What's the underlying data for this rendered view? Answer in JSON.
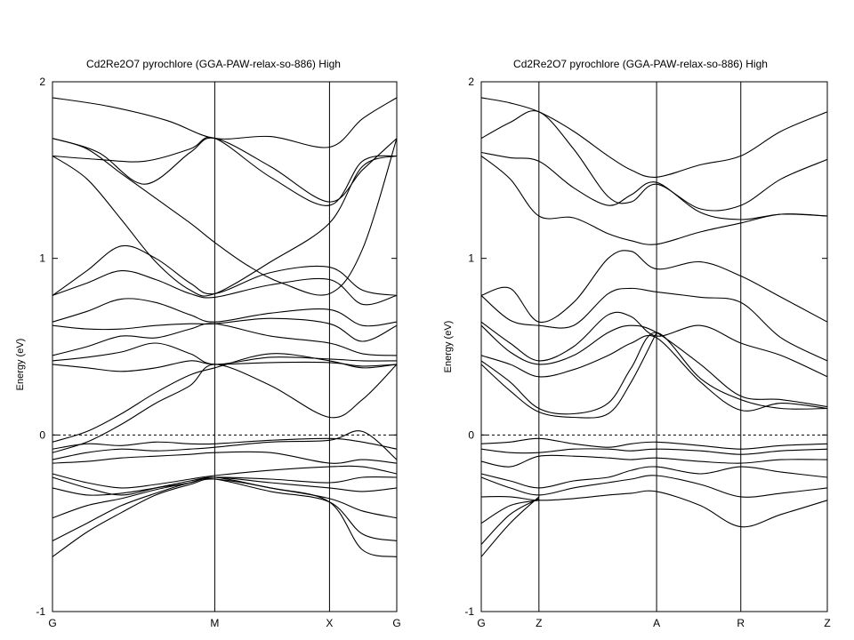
{
  "chart_data": [
    {
      "type": "line",
      "title": "Cd2Re2O7 pyrochlore (GGA-PAW-relax-so-886) High",
      "ylabel": "Energy (eV)",
      "xlabel": "",
      "ylim": [
        -1,
        2
      ],
      "yticks": [
        -1,
        0,
        1,
        2
      ],
      "xlim": [
        0,
        3
      ],
      "kpoints": [
        {
          "label": "G",
          "x": 0
        },
        {
          "label": "M",
          "x": 1.414
        },
        {
          "label": "X",
          "x": 2.414
        },
        {
          "label": "G",
          "x": 3
        }
      ],
      "fermi_level": 0,
      "bands": [
        {
          "x": [
            0,
            0.5,
            1.0,
            1.414,
            1.9,
            2.414,
            2.7,
            3
          ],
          "y": [
            1.91,
            1.86,
            1.78,
            1.68,
            1.69,
            1.63,
            1.79,
            1.91
          ]
        },
        {
          "x": [
            0,
            0.3,
            0.6,
            0.9,
            1.2,
            1.414,
            1.7,
            2.0,
            2.414,
            2.7,
            3
          ],
          "y": [
            1.68,
            1.62,
            1.48,
            1.34,
            1.2,
            1.09,
            0.96,
            0.86,
            0.8,
            1.05,
            1.68
          ]
        },
        {
          "x": [
            0,
            0.4,
            0.8,
            1.2,
            1.414,
            1.9,
            2.414,
            2.7,
            3
          ],
          "y": [
            1.68,
            1.6,
            1.42,
            1.6,
            1.68,
            1.52,
            1.32,
            1.5,
            1.68
          ]
        },
        {
          "x": [
            0,
            0.4,
            0.8,
            1.2,
            1.414,
            1.9,
            2.414,
            2.7,
            3
          ],
          "y": [
            1.58,
            1.56,
            1.55,
            1.62,
            1.68,
            1.46,
            1.3,
            1.55,
            1.58
          ]
        },
        {
          "x": [
            0,
            0.3,
            0.6,
            0.9,
            1.2,
            1.414,
            1.9,
            2.414,
            2.7,
            3
          ],
          "y": [
            1.58,
            1.45,
            1.22,
            0.98,
            0.82,
            0.8,
            0.98,
            1.2,
            1.52,
            1.58
          ]
        },
        {
          "x": [
            0,
            0.3,
            0.6,
            0.9,
            1.2,
            1.414,
            1.9,
            2.414,
            2.7,
            3
          ],
          "y": [
            0.79,
            0.93,
            1.07,
            1.0,
            0.86,
            0.8,
            0.92,
            0.95,
            0.82,
            0.79
          ]
        },
        {
          "x": [
            0,
            0.3,
            0.6,
            0.9,
            1.2,
            1.414,
            1.9,
            2.414,
            2.7,
            3
          ],
          "y": [
            0.79,
            0.86,
            0.93,
            0.88,
            0.8,
            0.78,
            0.85,
            0.88,
            0.74,
            0.79
          ]
        },
        {
          "x": [
            0,
            0.3,
            0.6,
            0.9,
            1.2,
            1.414,
            1.9,
            2.414,
            2.7,
            3
          ],
          "y": [
            0.64,
            0.7,
            0.77,
            0.75,
            0.68,
            0.64,
            0.69,
            0.71,
            0.62,
            0.64
          ]
        },
        {
          "x": [
            0,
            0.3,
            0.6,
            0.9,
            1.2,
            1.414,
            1.9,
            2.414,
            2.7,
            3
          ],
          "y": [
            0.62,
            0.6,
            0.6,
            0.62,
            0.63,
            0.63,
            0.66,
            0.63,
            0.53,
            0.62
          ]
        },
        {
          "x": [
            0,
            0.3,
            0.6,
            0.9,
            1.2,
            1.414,
            1.9,
            2.414,
            2.7,
            3
          ],
          "y": [
            0.45,
            0.5,
            0.56,
            0.55,
            0.6,
            0.63,
            0.56,
            0.52,
            0.46,
            0.45
          ]
        },
        {
          "x": [
            0,
            0.3,
            0.6,
            0.9,
            1.2,
            1.414,
            1.9,
            2.414,
            2.7,
            3
          ],
          "y": [
            0.42,
            0.44,
            0.47,
            0.52,
            0.46,
            0.4,
            0.44,
            0.43,
            0.42,
            0.42
          ]
        },
        {
          "x": [
            0,
            0.3,
            0.6,
            0.9,
            1.2,
            1.414,
            1.9,
            2.414,
            2.7,
            3
          ],
          "y": [
            0.4,
            0.38,
            0.36,
            0.38,
            0.42,
            0.4,
            0.41,
            0.41,
            0.39,
            0.4
          ]
        },
        {
          "x": [
            0,
            0.3,
            0.6,
            0.9,
            1.2,
            1.414,
            1.9,
            2.414,
            2.7,
            3
          ],
          "y": [
            -0.04,
            0.02,
            0.12,
            0.24,
            0.34,
            0.38,
            0.46,
            0.42,
            0.38,
            0.4
          ]
        },
        {
          "x": [
            0,
            0.3,
            0.6,
            0.9,
            1.2,
            1.414,
            1.9,
            2.414,
            2.7,
            3
          ],
          "y": [
            -0.1,
            -0.04,
            0.06,
            0.18,
            0.28,
            0.4,
            0.28,
            0.1,
            0.2,
            0.4
          ]
        },
        {
          "x": [
            0,
            0.3,
            0.6,
            0.9,
            1.2,
            1.414,
            1.9,
            2.414,
            2.7,
            3
          ],
          "y": [
            -0.08,
            -0.05,
            -0.06,
            -0.04,
            -0.05,
            -0.05,
            -0.03,
            -0.02,
            -0.04,
            -0.08
          ]
        },
        {
          "x": [
            0,
            0.3,
            0.6,
            0.9,
            1.2,
            1.414,
            1.9,
            2.414,
            2.7,
            3
          ],
          "y": [
            -0.14,
            -0.1,
            -0.08,
            -0.09,
            -0.08,
            -0.07,
            -0.04,
            -0.03,
            0.02,
            -0.14
          ]
        },
        {
          "x": [
            0,
            0.3,
            0.6,
            0.9,
            1.2,
            1.414,
            1.9,
            2.414,
            2.7,
            3
          ],
          "y": [
            -0.16,
            -0.15,
            -0.13,
            -0.12,
            -0.11,
            -0.1,
            -0.1,
            -0.16,
            -0.14,
            -0.16
          ]
        },
        {
          "x": [
            0,
            0.3,
            0.6,
            0.9,
            1.2,
            1.414,
            1.9,
            2.414,
            2.7,
            3
          ],
          "y": [
            -0.22,
            -0.27,
            -0.3,
            -0.28,
            -0.25,
            -0.23,
            -0.2,
            -0.18,
            -0.18,
            -0.22
          ]
        },
        {
          "x": [
            0,
            0.3,
            0.6,
            0.9,
            1.2,
            1.414,
            1.9,
            2.414,
            2.7,
            3
          ],
          "y": [
            -0.24,
            -0.3,
            -0.34,
            -0.3,
            -0.26,
            -0.24,
            -0.25,
            -0.27,
            -0.24,
            -0.24
          ]
        },
        {
          "x": [
            0,
            0.3,
            0.6,
            0.9,
            1.2,
            1.414,
            1.9,
            2.414,
            2.7,
            3
          ],
          "y": [
            -0.3,
            -0.34,
            -0.33,
            -0.3,
            -0.27,
            -0.24,
            -0.27,
            -0.3,
            -0.32,
            -0.3
          ]
        },
        {
          "x": [
            0,
            0.3,
            0.6,
            0.9,
            1.2,
            1.414,
            1.9,
            2.414,
            2.7,
            3
          ],
          "y": [
            -0.47,
            -0.4,
            -0.36,
            -0.31,
            -0.27,
            -0.24,
            -0.3,
            -0.36,
            -0.43,
            -0.47
          ]
        },
        {
          "x": [
            0,
            0.3,
            0.6,
            0.9,
            1.2,
            1.414,
            1.9,
            2.414,
            2.7,
            3
          ],
          "y": [
            -0.6,
            -0.5,
            -0.4,
            -0.33,
            -0.27,
            -0.25,
            -0.32,
            -0.38,
            -0.56,
            -0.6
          ]
        },
        {
          "x": [
            0,
            0.3,
            0.6,
            0.9,
            1.2,
            1.414,
            1.9,
            2.414,
            2.7,
            3
          ],
          "y": [
            -0.69,
            -0.55,
            -0.44,
            -0.34,
            -0.28,
            -0.25,
            -0.3,
            -0.38,
            -0.65,
            -0.69
          ]
        }
      ]
    },
    {
      "type": "line",
      "title": "Cd2Re2O7 pyrochlore (GGA-PAW-relax-so-886) High",
      "ylabel": "Energy (eV)",
      "xlabel": "",
      "ylim": [
        -1,
        2
      ],
      "yticks": [
        -1,
        0,
        1,
        2
      ],
      "xlim": [
        0,
        3
      ],
      "kpoints": [
        {
          "label": "G",
          "x": 0
        },
        {
          "label": "Z",
          "x": 0.5
        },
        {
          "label": "A",
          "x": 1.52
        },
        {
          "label": "R",
          "x": 2.25
        },
        {
          "label": "Z",
          "x": 3
        }
      ],
      "fermi_level": 0,
      "bands": [
        {
          "x": [
            0,
            0.25,
            0.5,
            0.8,
            1.1,
            1.3,
            1.52,
            1.9,
            2.25,
            2.6,
            3
          ],
          "y": [
            1.91,
            1.88,
            1.83,
            1.72,
            1.58,
            1.5,
            1.46,
            1.53,
            1.58,
            1.72,
            1.83
          ]
        },
        {
          "x": [
            0,
            0.25,
            0.5,
            0.8,
            1.1,
            1.3,
            1.52,
            1.9,
            2.25,
            2.6,
            3
          ],
          "y": [
            1.68,
            1.77,
            1.83,
            1.62,
            1.35,
            1.32,
            1.42,
            1.28,
            1.3,
            1.45,
            1.56
          ]
        },
        {
          "x": [
            0,
            0.25,
            0.5,
            0.8,
            1.1,
            1.3,
            1.52,
            1.9,
            2.25,
            2.6,
            3
          ],
          "y": [
            1.6,
            1.57,
            1.55,
            1.4,
            1.3,
            1.36,
            1.43,
            1.26,
            1.22,
            1.25,
            1.24
          ]
        },
        {
          "x": [
            0,
            0.25,
            0.5,
            0.8,
            1.1,
            1.3,
            1.52,
            1.9,
            2.25,
            2.6,
            3
          ],
          "y": [
            1.58,
            1.45,
            1.24,
            1.23,
            1.14,
            1.1,
            1.08,
            1.15,
            1.2,
            1.25,
            1.24
          ]
        },
        {
          "x": [
            0,
            0.25,
            0.5,
            0.8,
            1.1,
            1.3,
            1.52,
            1.9,
            2.25,
            2.6,
            3
          ],
          "y": [
            0.79,
            0.83,
            0.64,
            0.75,
            1.0,
            1.04,
            0.94,
            0.98,
            0.9,
            0.78,
            0.64
          ]
        },
        {
          "x": [
            0,
            0.25,
            0.5,
            0.8,
            1.1,
            1.3,
            1.52,
            1.9,
            2.25,
            2.6,
            3
          ],
          "y": [
            0.79,
            0.65,
            0.62,
            0.62,
            0.8,
            0.83,
            0.81,
            0.78,
            0.75,
            0.55,
            0.42
          ]
        },
        {
          "x": [
            0,
            0.25,
            0.5,
            0.8,
            1.1,
            1.3,
            1.52,
            1.9,
            2.25,
            2.6,
            3
          ],
          "y": [
            0.64,
            0.52,
            0.42,
            0.5,
            0.68,
            0.67,
            0.56,
            0.62,
            0.52,
            0.45,
            0.33
          ]
        },
        {
          "x": [
            0,
            0.25,
            0.5,
            0.8,
            1.1,
            1.3,
            1.52,
            1.9,
            2.25,
            2.6,
            3
          ],
          "y": [
            0.62,
            0.47,
            0.4,
            0.45,
            0.58,
            0.62,
            0.58,
            0.4,
            0.22,
            0.2,
            0.16
          ]
        },
        {
          "x": [
            0,
            0.25,
            0.5,
            0.8,
            1.1,
            1.3,
            1.52,
            1.9,
            2.25,
            2.6,
            3
          ],
          "y": [
            0.45,
            0.4,
            0.33,
            0.37,
            0.45,
            0.52,
            0.55,
            0.3,
            0.14,
            0.18,
            0.15
          ]
        },
        {
          "x": [
            0,
            0.25,
            0.5,
            0.8,
            1.1,
            1.3,
            1.52,
            1.9,
            2.25,
            2.6,
            3
          ],
          "y": [
            0.42,
            0.3,
            0.15,
            0.12,
            0.18,
            0.38,
            0.58,
            0.32,
            0.2,
            0.15,
            0.15
          ]
        },
        {
          "x": [
            0,
            0.25,
            0.5,
            0.8,
            1.1,
            1.3,
            1.52
          ],
          "y": [
            0.4,
            0.25,
            0.13,
            0.1,
            0.12,
            0.3,
            0.58
          ]
        },
        {
          "x": [
            0,
            0.25,
            0.5,
            0.8,
            1.1,
            1.3,
            1.52,
            1.9,
            2.25,
            2.6,
            3
          ],
          "y": [
            -0.05,
            -0.04,
            -0.02,
            -0.05,
            -0.07,
            -0.05,
            -0.04,
            -0.06,
            -0.08,
            -0.06,
            -0.05
          ]
        },
        {
          "x": [
            0,
            0.25,
            0.5,
            0.8,
            1.1,
            1.3,
            1.52,
            1.9,
            2.25,
            2.6,
            3
          ],
          "y": [
            -0.08,
            -0.1,
            -0.1,
            -0.08,
            -0.08,
            -0.09,
            -0.08,
            -0.09,
            -0.11,
            -0.09,
            -0.08
          ]
        },
        {
          "x": [
            0,
            0.25,
            0.5,
            0.8,
            1.1,
            1.3,
            1.52,
            1.9,
            2.25,
            2.6,
            3
          ],
          "y": [
            -0.15,
            -0.18,
            -0.12,
            -0.12,
            -0.13,
            -0.14,
            -0.13,
            -0.15,
            -0.16,
            -0.14,
            -0.14
          ]
        },
        {
          "x": [
            0,
            0.25,
            0.5,
            0.8,
            1.1,
            1.3,
            1.52,
            1.9,
            2.25,
            2.6,
            3
          ],
          "y": [
            -0.22,
            -0.26,
            -0.3,
            -0.26,
            -0.24,
            -0.2,
            -0.18,
            -0.22,
            -0.18,
            -0.21,
            -0.24
          ]
        },
        {
          "x": [
            0,
            0.25,
            0.5,
            0.8,
            1.1,
            1.3,
            1.52,
            1.9,
            2.25,
            2.6,
            3
          ],
          "y": [
            -0.24,
            -0.3,
            -0.34,
            -0.3,
            -0.27,
            -0.25,
            -0.23,
            -0.28,
            -0.35,
            -0.33,
            -0.3
          ]
        },
        {
          "x": [
            0,
            0.25,
            0.5,
            0.8,
            1.1,
            1.3,
            1.52,
            1.9,
            2.25,
            2.6,
            3
          ],
          "y": [
            -0.35,
            -0.35,
            -0.37,
            -0.36,
            -0.34,
            -0.33,
            -0.32,
            -0.4,
            -0.52,
            -0.45,
            -0.37
          ]
        },
        {
          "x": [
            0,
            0.25,
            0.5
          ],
          "y": [
            -0.5,
            -0.4,
            -0.37
          ]
        },
        {
          "x": [
            0,
            0.25,
            0.5
          ],
          "y": [
            -0.62,
            -0.45,
            -0.36
          ]
        },
        {
          "x": [
            0,
            0.25,
            0.5
          ],
          "y": [
            -0.69,
            -0.5,
            -0.35
          ]
        }
      ]
    }
  ]
}
